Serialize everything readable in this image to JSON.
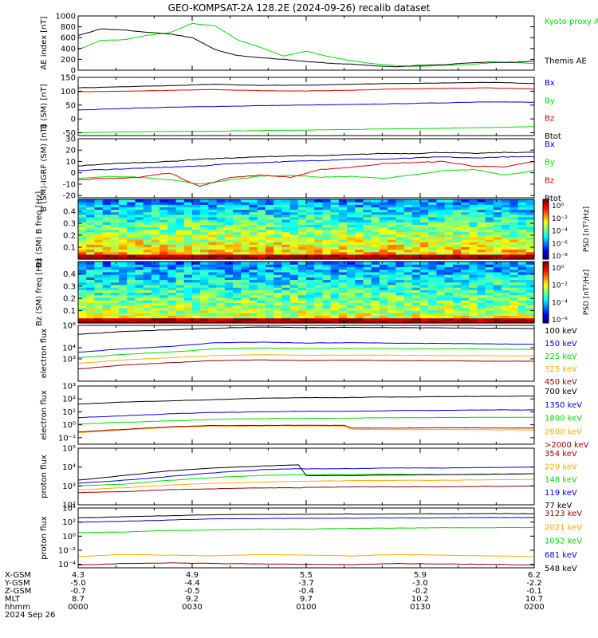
{
  "title": "GEO-KOMPSAT-2A 128.2E (2024-09-26) recalib dataset",
  "colors": {
    "black": "#000000",
    "green": "#00dd00",
    "blue": "#0000ee",
    "red": "#dd0000",
    "orange": "#ffaa00",
    "darkred": "#990000"
  },
  "chart_data": [
    {
      "type": "line",
      "ylabel": "AE index [nT]",
      "ylim": [
        0,
        1000
      ],
      "yticks": [
        "1000",
        "800",
        "600",
        "400",
        "200",
        "0"
      ],
      "ytick_values": [
        1000,
        800,
        600,
        400,
        200,
        0
      ],
      "x": [
        0,
        6,
        12,
        18,
        24,
        30,
        36,
        42,
        48,
        54,
        60,
        66,
        72,
        78,
        84,
        90,
        96,
        102,
        108,
        114,
        120
      ],
      "series": [
        {
          "name": "Kyoto proxy AE",
          "color": "#00dd00",
          "values": [
            380,
            550,
            560,
            640,
            690,
            860,
            820,
            560,
            420,
            260,
            350,
            250,
            170,
            120,
            80,
            70,
            90,
            100,
            130,
            150,
            120
          ]
        },
        {
          "name": "Themis AE",
          "color": "#000000",
          "values": [
            640,
            760,
            740,
            700,
            670,
            600,
            380,
            270,
            230,
            200,
            160,
            130,
            110,
            80,
            60,
            90,
            100,
            130,
            150,
            140,
            170
          ]
        }
      ]
    },
    {
      "type": "line",
      "ylabel": "B (SM) [nT]",
      "ylim": [
        -60,
        150
      ],
      "yticks": [
        "150",
        "100",
        "50",
        "0",
        "-50"
      ],
      "ytick_values": [
        150,
        100,
        50,
        0,
        -50
      ],
      "x": [
        0,
        12,
        24,
        36,
        48,
        60,
        72,
        84,
        96,
        108,
        120
      ],
      "series": [
        {
          "name": "Bx",
          "color": "#0000ee",
          "values": [
            32,
            38,
            42,
            45,
            48,
            50,
            52,
            55,
            58,
            62,
            60
          ]
        },
        {
          "name": "By",
          "color": "#00dd00",
          "values": [
            -50,
            -47,
            -45,
            -44,
            -42,
            -40,
            -38,
            -36,
            -34,
            -31,
            -28
          ]
        },
        {
          "name": "Bz",
          "color": "#dd0000",
          "values": [
            98,
            100,
            103,
            106,
            102,
            101,
            104,
            108,
            110,
            112,
            108
          ]
        },
        {
          "name": "Btot",
          "color": "#000000",
          "values": [
            112,
            116,
            120,
            125,
            121,
            122,
            125,
            128,
            130,
            132,
            128
          ]
        }
      ]
    },
    {
      "type": "line",
      "ylabel": "B (SM)-IGRF (SM) [nT]",
      "ylim": [
        -22,
        30
      ],
      "yticks": [
        "30",
        "20",
        "10",
        "0",
        "-10",
        "-20"
      ],
      "ytick_values": [
        30,
        20,
        10,
        0,
        -10,
        -20
      ],
      "x": [
        0,
        8,
        16,
        24,
        32,
        40,
        48,
        56,
        64,
        72,
        80,
        88,
        96,
        104,
        112,
        120
      ],
      "series": [
        {
          "name": "Bx",
          "color": "#0000ee",
          "values": [
            2,
            3,
            4,
            5,
            6,
            8,
            9,
            10,
            11,
            12,
            12,
            13,
            14,
            13,
            14,
            14
          ]
        },
        {
          "name": "By",
          "color": "#00dd00",
          "values": [
            -5,
            -3,
            -4,
            -6,
            -10,
            -6,
            -3,
            -2,
            -4,
            -3,
            -5,
            -2,
            2,
            3,
            -2,
            2
          ]
        },
        {
          "name": "Bz",
          "color": "#dd0000",
          "values": [
            -6,
            -5,
            -4,
            0,
            -12,
            -4,
            -2,
            -4,
            3,
            5,
            8,
            9,
            10,
            6,
            5,
            10
          ]
        },
        {
          "name": "Btot",
          "color": "#000000",
          "values": [
            6,
            8,
            9,
            10,
            12,
            13,
            14,
            15,
            15,
            16,
            17,
            17,
            18,
            17,
            18,
            18
          ]
        }
      ]
    },
    {
      "type": "heatmap",
      "ylabel": "Bx (SM) B freq [Hz]",
      "ylim": [
        0,
        0.5
      ],
      "yticks": [
        "0.4",
        "0.3",
        "0.2",
        "0.1"
      ],
      "ytick_values": [
        0.4,
        0.3,
        0.2,
        0.1
      ],
      "colorbar": {
        "label": "PSD [nT²/Hz]",
        "ticks": [
          "10⁰",
          "10⁻²",
          "10⁻⁴",
          "10⁻⁶",
          "10⁻⁸"
        ]
      }
    },
    {
      "type": "heatmap",
      "ylabel": "Bz (SM) freq [Hz]",
      "ylim": [
        0,
        0.5
      ],
      "yticks": [
        "0.4",
        "0.3",
        "0.2",
        "0.1"
      ],
      "ytick_values": [
        0.4,
        0.3,
        0.2,
        0.1
      ],
      "colorbar": {
        "label": "PSD [nT²/Hz]",
        "ticks": [
          "10⁰",
          "10⁻²",
          "10⁻⁴",
          "10⁻⁶"
        ]
      }
    },
    {
      "type": "line",
      "ylabel": "electron flux",
      "log": true,
      "ylim": [
        1,
        6
      ],
      "yticks": [
        "10⁶",
        "10⁴",
        "10³"
      ],
      "ytick_values": [
        6,
        4,
        3
      ],
      "x": [
        0,
        12,
        24,
        36,
        48,
        60,
        72,
        84,
        96,
        108,
        120
      ],
      "series": [
        {
          "name": "100 keV",
          "color": "#000000",
          "values": [
            5.2,
            5.45,
            5.6,
            5.75,
            5.85,
            5.8,
            5.82,
            5.8,
            5.78,
            5.75,
            5.72
          ]
        },
        {
          "name": "150 keV",
          "color": "#0000ee",
          "values": [
            3.6,
            3.9,
            4.1,
            4.45,
            4.5,
            4.42,
            4.45,
            4.4,
            4.38,
            4.35,
            4.3
          ]
        },
        {
          "name": "225 keV",
          "color": "#00dd00",
          "values": [
            3.1,
            3.4,
            3.6,
            3.9,
            3.98,
            3.92,
            3.95,
            3.92,
            3.9,
            3.88,
            3.85
          ]
        },
        {
          "name": "325 keV",
          "color": "#ffaa00",
          "values": [
            2.6,
            2.9,
            3.1,
            3.3,
            3.38,
            3.32,
            3.35,
            3.32,
            3.3,
            3.28,
            3.25
          ]
        },
        {
          "name": "450 keV",
          "color": "#990000",
          "values": [
            2.1,
            2.45,
            2.65,
            2.85,
            2.9,
            2.85,
            2.88,
            2.85,
            2.82,
            2.8,
            2.78
          ]
        }
      ]
    },
    {
      "type": "line",
      "ylabel": "electron flux",
      "log": true,
      "ylim": [
        -1.5,
        3
      ],
      "yticks": [
        "10³",
        "10²",
        "10¹",
        "10⁰",
        "10⁻¹"
      ],
      "ytick_values": [
        3,
        2,
        1,
        0,
        -1
      ],
      "x": [
        0,
        12,
        24,
        36,
        48,
        60,
        70,
        72,
        84,
        96,
        108,
        120
      ],
      "series": [
        {
          "name": "700 keV",
          "color": "#000000",
          "values": [
            1.6,
            1.75,
            1.85,
            1.95,
            2.05,
            2.1,
            2.1,
            2.12,
            2.15,
            2.18,
            2.2,
            2.22
          ]
        },
        {
          "name": "1350 keV",
          "color": "#0000ee",
          "values": [
            0.55,
            0.7,
            0.85,
            0.95,
            1.0,
            1.05,
            1.05,
            1.05,
            1.1,
            1.12,
            1.15,
            1.15
          ]
        },
        {
          "name": "1800 keV",
          "color": "#00dd00",
          "values": [
            0.05,
            0.2,
            0.3,
            0.42,
            0.48,
            0.5,
            0.5,
            0.52,
            0.55,
            0.56,
            0.58,
            0.58
          ]
        },
        {
          "name": "2600 keV",
          "color": "#ffaa00",
          "values": [
            -0.6,
            -0.4,
            -0.2,
            -0.1,
            -0.1,
            -0.08,
            -0.1,
            -0.35,
            -0.38,
            -0.36,
            -0.38,
            -0.4
          ]
        },
        {
          "name": ">2000 keV",
          "color": "#990000",
          "values": [
            -0.55,
            -0.35,
            -0.15,
            -0.05,
            -0.05,
            -0.03,
            -0.05,
            -0.25,
            -0.25,
            -0.23,
            -0.24,
            -0.25
          ]
        }
      ]
    },
    {
      "type": "line",
      "ylabel": "proton flux",
      "log": true,
      "ylim": [
        2,
        5
      ],
      "yticks": [
        "10⁵",
        "10⁴",
        "10³",
        "10²"
      ],
      "ytick_values": [
        5,
        4,
        3,
        2
      ],
      "x": [
        0,
        12,
        24,
        36,
        48,
        58,
        60,
        72,
        84,
        96,
        108,
        120
      ],
      "series": [
        {
          "name": "354 keV",
          "color": "#990000",
          "values": [
            2.65,
            2.7,
            2.8,
            2.85,
            2.9,
            2.9,
            2.92,
            2.95,
            2.95,
            2.95,
            2.98,
            3.0
          ]
        },
        {
          "name": "229 keV",
          "color": "#ffaa00",
          "values": [
            2.8,
            2.9,
            3.05,
            3.15,
            3.2,
            3.25,
            3.25,
            3.28,
            3.3,
            3.3,
            3.32,
            3.35
          ]
        },
        {
          "name": "148 keV",
          "color": "#00dd00",
          "values": [
            3.0,
            3.1,
            3.3,
            3.45,
            3.55,
            3.6,
            3.6,
            3.62,
            3.62,
            3.6,
            3.62,
            3.65
          ]
        },
        {
          "name": "119 keV",
          "color": "#0000ee",
          "values": [
            3.15,
            3.3,
            3.5,
            3.7,
            3.85,
            3.92,
            3.9,
            3.92,
            3.95,
            3.95,
            3.98,
            4.0
          ]
        },
        {
          "name": "77 keV",
          "color": "#000000",
          "values": [
            3.3,
            3.55,
            3.8,
            3.95,
            4.05,
            4.12,
            3.55,
            3.55,
            3.58,
            3.6,
            3.62,
            3.65
          ]
        }
      ]
    },
    {
      "type": "line",
      "ylabel": "proton flux",
      "log": true,
      "ylim": [
        -4.5,
        4
      ],
      "yticks": [
        "10⁴",
        "10²",
        "10⁰",
        "10⁻²",
        "10⁻⁴"
      ],
      "ytick_values": [
        4,
        2,
        0,
        -2,
        -4
      ],
      "x": [
        0,
        12,
        24,
        36,
        48,
        60,
        72,
        84,
        96,
        108,
        120
      ],
      "series": [
        {
          "name": "3123 keV",
          "color": "#990000",
          "values": [
            -4.1,
            -3.9,
            -3.8,
            -3.9,
            -3.95,
            -4.0,
            -4.05,
            -3.9,
            -3.95,
            -4.0,
            -4.1
          ]
        },
        {
          "name": "2021 keV",
          "color": "#ffaa00",
          "values": [
            -2.9,
            -2.6,
            -2.7,
            -2.8,
            -2.6,
            -2.7,
            -2.8,
            -2.6,
            -2.7,
            -2.8,
            -2.9
          ]
        },
        {
          "name": "1052 keV",
          "color": "#00dd00",
          "values": [
            0.5,
            0.6,
            0.8,
            0.9,
            1.0,
            1.0,
            1.1,
            1.15,
            1.2,
            1.2,
            1.25
          ]
        },
        {
          "name": "681 keV",
          "color": "#0000ee",
          "values": [
            2.0,
            2.1,
            2.3,
            2.45,
            2.5,
            2.55,
            2.55,
            2.6,
            2.6,
            2.65,
            2.65
          ]
        },
        {
          "name": "548 keV",
          "color": "#000000",
          "values": [
            2.6,
            2.75,
            2.9,
            3.05,
            3.1,
            3.1,
            3.15,
            3.15,
            3.18,
            3.2,
            3.2
          ]
        }
      ]
    }
  ],
  "footer": {
    "row_labels": [
      "X-GSM",
      "Y-GSM",
      "Z-GSM",
      "MLT",
      "hhmm",
      "2024 Sep 26"
    ],
    "columns": [
      {
        "x_min": 0,
        "values": [
          "4.3",
          "-5.0",
          "-0.7",
          "8.7",
          "0000"
        ]
      },
      {
        "x_min": 30,
        "values": [
          "4.9",
          "-4.4",
          "-0.5",
          "9.2",
          "0030"
        ]
      },
      {
        "x_min": 60,
        "values": [
          "5.5",
          "-3.7",
          "-0.4",
          "9.7",
          "0100"
        ]
      },
      {
        "x_min": 90,
        "values": [
          "5.9",
          "-3.0",
          "-0.2",
          "10.2",
          "0130"
        ]
      },
      {
        "x_min": 120,
        "values": [
          "6.2",
          "-2.2",
          "-0.1",
          "10.7",
          "0200"
        ]
      }
    ]
  }
}
